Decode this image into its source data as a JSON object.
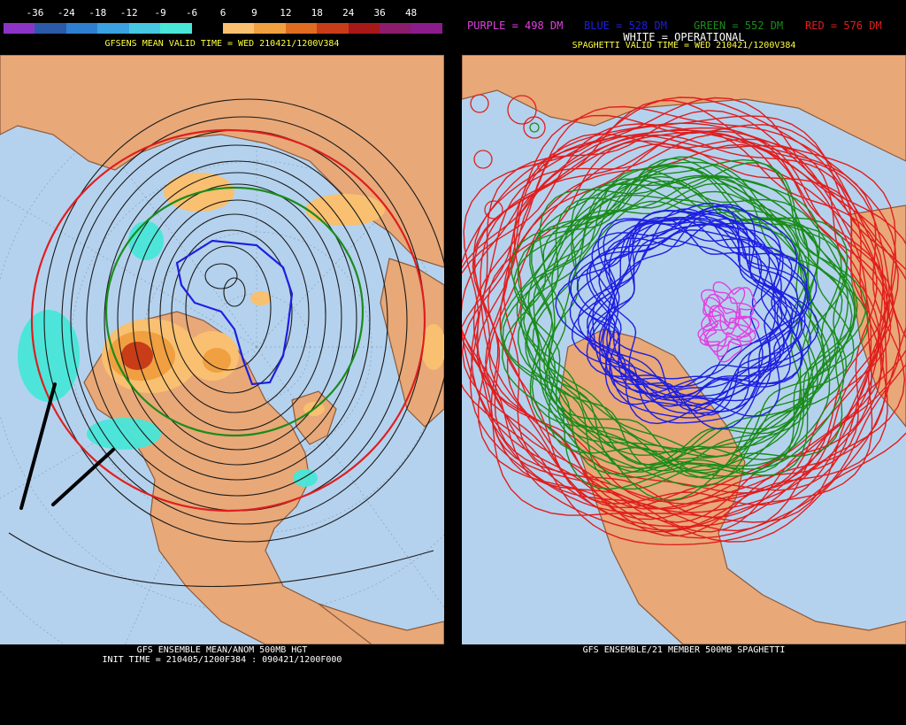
{
  "left": {
    "legend_values": [
      "-36",
      "-24",
      "-18",
      "-12",
      "-9",
      "-6",
      "6",
      "9",
      "12",
      "18",
      "24",
      "36",
      "48"
    ],
    "legend_colors": [
      "#8c34c8",
      "#2a5aa8",
      "#2f7fd0",
      "#3aa2e0",
      "#46c8e0",
      "#48e6d8",
      "#000000",
      "#f8c070",
      "#f0a040",
      "#e06c20",
      "#c83c18",
      "#a81818",
      "#8c1c6c",
      "#8c1c8c"
    ],
    "subtitle": "GFSENS MEAN VALID TIME = WED 210421/1200V384",
    "footer_line1": "GFS ENSEMBLE MEAN/ANOM 500MB HGT",
    "footer_line2": "INIT TIME = 210405/1200F384 : 090421/1200F000"
  },
  "right": {
    "purple_label": "PURPLE = 498 DM",
    "blue_label": "BLUE = 528 DM",
    "green_label": "GREEN = 552 DM",
    "red_label": "RED = 576 DM",
    "white_label": "WHITE = OPERATIONAL",
    "subtitle": "SPAGHETTI VALID TIME = WED 210421/1200V384",
    "footer": "GFS ENSEMBLE/21 MEMBER 500MB SPAGHETTI"
  },
  "colors": {
    "ocean": "#b4d2ee",
    "land": "#e8a878",
    "borders": "#8c5a3c",
    "purple": "#e040e0",
    "blue": "#1e1ee0",
    "green": "#1a8c1a",
    "red": "#e01e1e"
  }
}
